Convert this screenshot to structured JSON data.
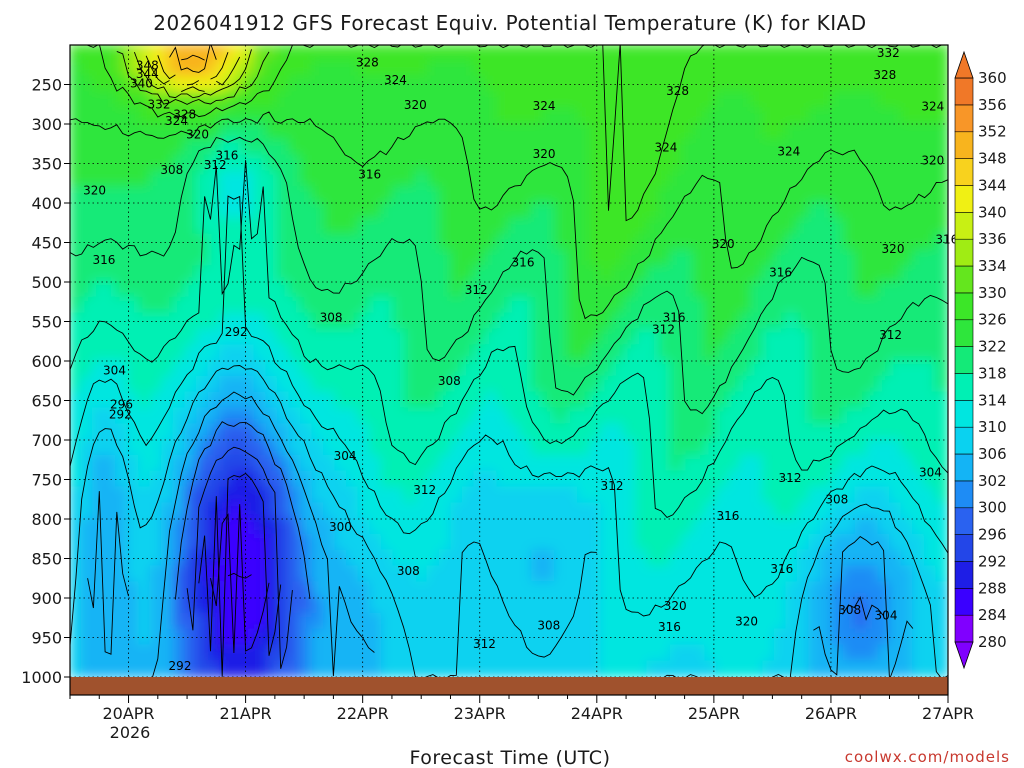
{
  "chart_data": {
    "type": "heatmap",
    "title": "2026041912 GFS Forecast Equiv. Potential Temperature (K) for KIAD",
    "xlabel": "Forecast Time (UTC)",
    "ylabel": "",
    "x_categories": [
      "20APR",
      "21APR",
      "22APR",
      "23APR",
      "24APR",
      "25APR",
      "26APR",
      "27APR"
    ],
    "x_year_label": "2026",
    "x_range_days": [
      -0.5,
      7.0
    ],
    "y_ticks": [
      250,
      300,
      350,
      400,
      450,
      500,
      550,
      600,
      650,
      700,
      750,
      800,
      850,
      900,
      950,
      1000
    ],
    "y_range_hpa": [
      200,
      1000
    ],
    "colorbar": {
      "levels": [
        280,
        284,
        288,
        292,
        296,
        300,
        302,
        306,
        310,
        314,
        318,
        322,
        326,
        330,
        334,
        336,
        340,
        344,
        348,
        352,
        356,
        360
      ],
      "colors": [
        "#8000ff",
        "#3a00ff",
        "#1e1ee6",
        "#2346e8",
        "#2a62f0",
        "#1e8cf5",
        "#14b4f5",
        "#0ad2f0",
        "#00e6e0",
        "#00f0b4",
        "#14ea78",
        "#2ee63c",
        "#3ce628",
        "#64e61e",
        "#a0ec14",
        "#c8f014",
        "#f0f014",
        "#f8d21e",
        "#f8b41e",
        "#f89628",
        "#f07828"
      ]
    },
    "contour_labels": [
      {
        "value": "348",
        "day": 0.16,
        "p": 226
      },
      {
        "value": "344",
        "day": 0.16,
        "p": 237
      },
      {
        "value": "340",
        "day": 0.11,
        "p": 249
      },
      {
        "value": "332",
        "day": 0.26,
        "p": 275
      },
      {
        "value": "328",
        "day": 0.48,
        "p": 288
      },
      {
        "value": "324",
        "day": 0.41,
        "p": 296
      },
      {
        "value": "320",
        "day": 0.59,
        "p": 313
      },
      {
        "value": "316",
        "day": 0.84,
        "p": 340
      },
      {
        "value": "312",
        "day": 0.74,
        "p": 352
      },
      {
        "value": "308",
        "day": 0.37,
        "p": 358
      },
      {
        "value": "316",
        "day": 2.06,
        "p": 364
      },
      {
        "value": "320",
        "day": -0.29,
        "p": 384
      },
      {
        "value": "328",
        "day": 2.04,
        "p": 222
      },
      {
        "value": "324",
        "day": 2.28,
        "p": 244
      },
      {
        "value": "320",
        "day": 2.45,
        "p": 276
      },
      {
        "value": "324",
        "day": 3.55,
        "p": 277
      },
      {
        "value": "328",
        "day": 4.69,
        "p": 258
      },
      {
        "value": "324",
        "day": 4.59,
        "p": 330
      },
      {
        "value": "320",
        "day": 3.55,
        "p": 338
      },
      {
        "value": "324",
        "day": 5.64,
        "p": 335
      },
      {
        "value": "332",
        "day": 6.49,
        "p": 210
      },
      {
        "value": "328",
        "day": 6.46,
        "p": 238
      },
      {
        "value": "324",
        "day": 6.87,
        "p": 278
      },
      {
        "value": "320",
        "day": 6.87,
        "p": 346
      },
      {
        "value": "320",
        "day": 5.08,
        "p": 452
      },
      {
        "value": "320",
        "day": 6.53,
        "p": 458
      },
      {
        "value": "316",
        "day": 6.99,
        "p": 446
      },
      {
        "value": "316",
        "day": 5.57,
        "p": 488
      },
      {
        "value": "316",
        "day": 3.37,
        "p": 475
      },
      {
        "value": "312",
        "day": 2.97,
        "p": 510
      },
      {
        "value": "316",
        "day": 4.66,
        "p": 545
      },
      {
        "value": "312",
        "day": 4.57,
        "p": 560
      },
      {
        "value": "312",
        "day": 6.51,
        "p": 567
      },
      {
        "value": "316",
        "day": -0.21,
        "p": 472
      },
      {
        "value": "308",
        "day": 1.73,
        "p": 545
      },
      {
        "value": "292",
        "day": 0.92,
        "p": 563
      },
      {
        "value": "304",
        "day": -0.12,
        "p": 612
      },
      {
        "value": "296",
        "day": -0.06,
        "p": 655
      },
      {
        "value": "292",
        "day": -0.07,
        "p": 668
      },
      {
        "value": "308",
        "day": 2.74,
        "p": 625
      },
      {
        "value": "304",
        "day": 1.85,
        "p": 720
      },
      {
        "value": "312",
        "day": 2.53,
        "p": 763
      },
      {
        "value": "300",
        "day": 1.81,
        "p": 810
      },
      {
        "value": "308",
        "day": 2.39,
        "p": 866
      },
      {
        "value": "312",
        "day": 4.13,
        "p": 758
      },
      {
        "value": "316",
        "day": 5.12,
        "p": 796
      },
      {
        "value": "312",
        "day": 5.65,
        "p": 748
      },
      {
        "value": "308",
        "day": 6.05,
        "p": 775
      },
      {
        "value": "304",
        "day": 6.85,
        "p": 741
      },
      {
        "value": "308",
        "day": 3.59,
        "p": 935
      },
      {
        "value": "312",
        "day": 3.04,
        "p": 958
      },
      {
        "value": "320",
        "day": 4.67,
        "p": 910
      },
      {
        "value": "316",
        "day": 4.62,
        "p": 937
      },
      {
        "value": "320",
        "day": 5.28,
        "p": 930
      },
      {
        "value": "316",
        "day": 5.58,
        "p": 863
      },
      {
        "value": "308",
        "day": 6.16,
        "p": 915
      },
      {
        "value": "304",
        "day": 6.47,
        "p": 922
      },
      {
        "value": "292",
        "day": 0.44,
        "p": 986
      }
    ]
  },
  "footer": {
    "credit": "coolwx.com/models"
  }
}
